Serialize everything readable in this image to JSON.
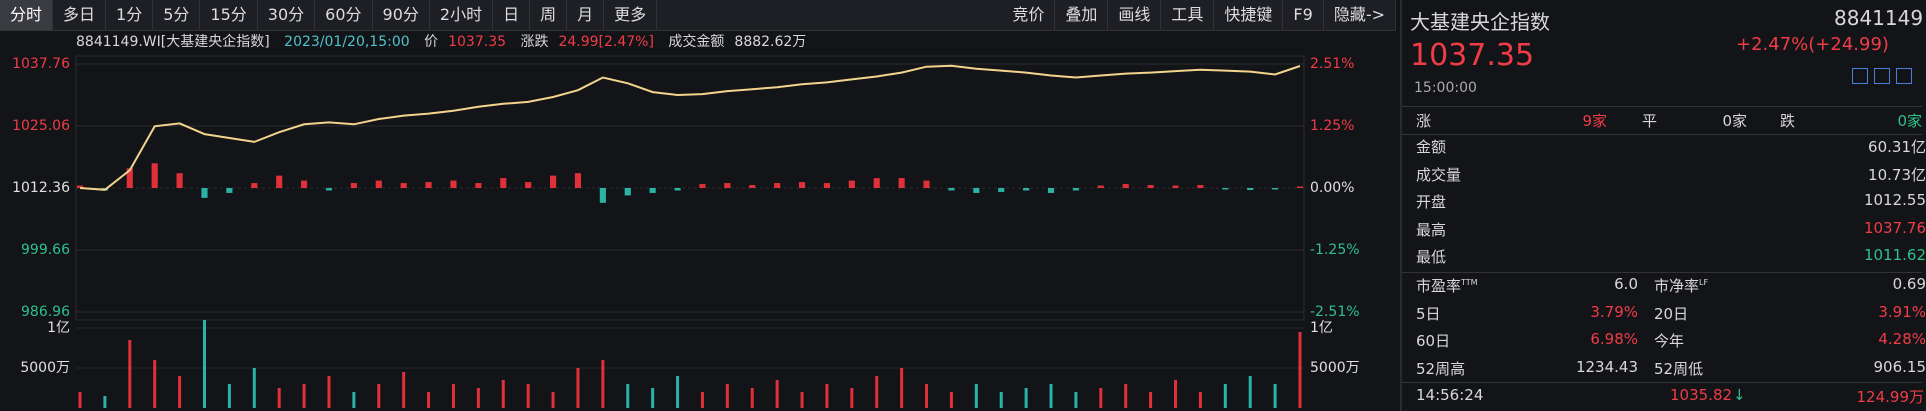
{
  "toolbar": {
    "periods": [
      "分时",
      "多日",
      "1分",
      "5分",
      "15分",
      "30分",
      "60分",
      "90分",
      "2小时",
      "日",
      "周",
      "月",
      "更多"
    ],
    "tools": [
      "竞价",
      "叠加",
      "画线",
      "工具",
      "快捷键",
      "F9",
      "隐藏->"
    ]
  },
  "info": {
    "code": "8841149.WI[大基建央企指数]",
    "datetime": "2023/01/20,15:00",
    "price_label": "价",
    "price": "1037.35",
    "change_label": "涨跌",
    "change": "24.99[2.47%]",
    "amount_label": "成交金额",
    "amount": "8882.62万"
  },
  "chart_data": [
    {
      "type": "line",
      "color": "#f3d48c",
      "values": [
        1012.36,
        1012.0,
        1016,
        1025,
        1025.6,
        1023.4,
        1022.6,
        1021.8,
        1023.8,
        1025.4,
        1025.8,
        1025.4,
        1026.5,
        1027.2,
        1027.6,
        1028.2,
        1029,
        1029.6,
        1030,
        1031,
        1032.4,
        1035,
        1033.8,
        1032,
        1031.4,
        1031.6,
        1032.2,
        1032.6,
        1033,
        1033.6,
        1034,
        1034.6,
        1035.2,
        1036,
        1037.2,
        1037.4,
        1036.8,
        1036.4,
        1036,
        1035.4,
        1035,
        1035.4,
        1035.8,
        1036,
        1036.3,
        1036.6,
        1036.4,
        1036.2,
        1035.6,
        1037.35
      ],
      "ylim": [
        986.96,
        1037.76
      ],
      "yticks": [
        1037.76,
        1025.06,
        1012.36,
        999.66,
        986.96
      ],
      "y2lim": [
        -2.51,
        2.51
      ],
      "y2ticks": [
        {
          "value": 2.51,
          "label": "2.51%"
        },
        {
          "value": 1.25,
          "label": "1.25%"
        },
        {
          "value": 0,
          "label": "0.00%"
        },
        {
          "value": -1.25,
          "label": "-1.25%"
        },
        {
          "value": -2.51,
          "label": "-2.51%"
        }
      ],
      "bars": {
        "axis": "y2",
        "up_color": "#e0303a",
        "down_color": "#2ab3a6",
        "values": [
          0.05,
          -0.05,
          0.4,
          0.5,
          0.3,
          -0.2,
          -0.1,
          0.1,
          0.25,
          0.15,
          -0.05,
          0.1,
          0.15,
          0.1,
          0.12,
          0.15,
          0.1,
          0.2,
          0.12,
          0.25,
          0.3,
          -0.3,
          -0.15,
          -0.1,
          -0.05,
          0.08,
          0.1,
          0.06,
          0.1,
          0.12,
          0.1,
          0.15,
          0.2,
          0.2,
          0.15,
          -0.05,
          -0.1,
          -0.08,
          -0.05,
          -0.1,
          -0.05,
          0.05,
          0.08,
          0.06,
          0.05,
          0.06,
          -0.03,
          -0.04,
          -0.03,
          0.03
        ]
      }
    },
    {
      "type": "bar",
      "up_color": "#e0303a",
      "down_color": "#2ab3a6",
      "values": [
        20000000,
        15000000,
        85000000,
        60000000,
        40000000,
        110000000,
        30000000,
        50000000,
        25000000,
        30000000,
        40000000,
        20000000,
        30000000,
        45000000,
        20000000,
        30000000,
        25000000,
        35000000,
        30000000,
        20000000,
        50000000,
        60000000,
        30000000,
        25000000,
        40000000,
        20000000,
        30000000,
        25000000,
        35000000,
        20000000,
        30000000,
        25000000,
        40000000,
        50000000,
        30000000,
        20000000,
        30000000,
        20000000,
        25000000,
        30000000,
        20000000,
        25000000,
        30000000,
        20000000,
        35000000,
        20000000,
        30000000,
        40000000,
        30000000,
        95000000
      ],
      "ylim": [
        0,
        110000000
      ],
      "yticks": [
        {
          "value": 100000000,
          "label": "1亿"
        },
        {
          "value": 50000000,
          "label": "5000万"
        }
      ]
    }
  ],
  "panel": {
    "name": "大基建央企指数",
    "code": "8841149",
    "price": "1037.35",
    "change": "+2.47%(+24.99)",
    "time": "15:00:00",
    "breadth": [
      {
        "label": "涨",
        "value": "9家"
      },
      {
        "label": "平",
        "value": "0家"
      },
      {
        "label": "跌",
        "value": "0家"
      }
    ],
    "stats": [
      {
        "label": "金额",
        "value": "60.31亿"
      },
      {
        "label": "成交量",
        "value": "10.73亿"
      },
      {
        "label": "开盘",
        "value": "1012.55"
      },
      {
        "label": "最高",
        "value": "1037.76"
      },
      {
        "label": "最低",
        "value": "1011.62"
      }
    ],
    "ratios": [
      [
        {
          "label": "市盈率",
          "sup": "TTM",
          "value": "6.0"
        },
        {
          "label": "市净率",
          "sup": "LF",
          "value": "0.69"
        }
      ],
      [
        {
          "label": "5日",
          "value": "3.79%"
        },
        {
          "label": "20日",
          "value": "3.91%"
        }
      ],
      [
        {
          "label": "60日",
          "value": "6.98%"
        },
        {
          "label": "今年",
          "value": "4.28%"
        }
      ],
      [
        {
          "label": "52周高",
          "value": "1234.43"
        },
        {
          "label": "52周低",
          "value": "906.15"
        }
      ]
    ],
    "tick": {
      "time": "14:56:24",
      "price": "1035.82",
      "volume": "124.99万"
    }
  }
}
